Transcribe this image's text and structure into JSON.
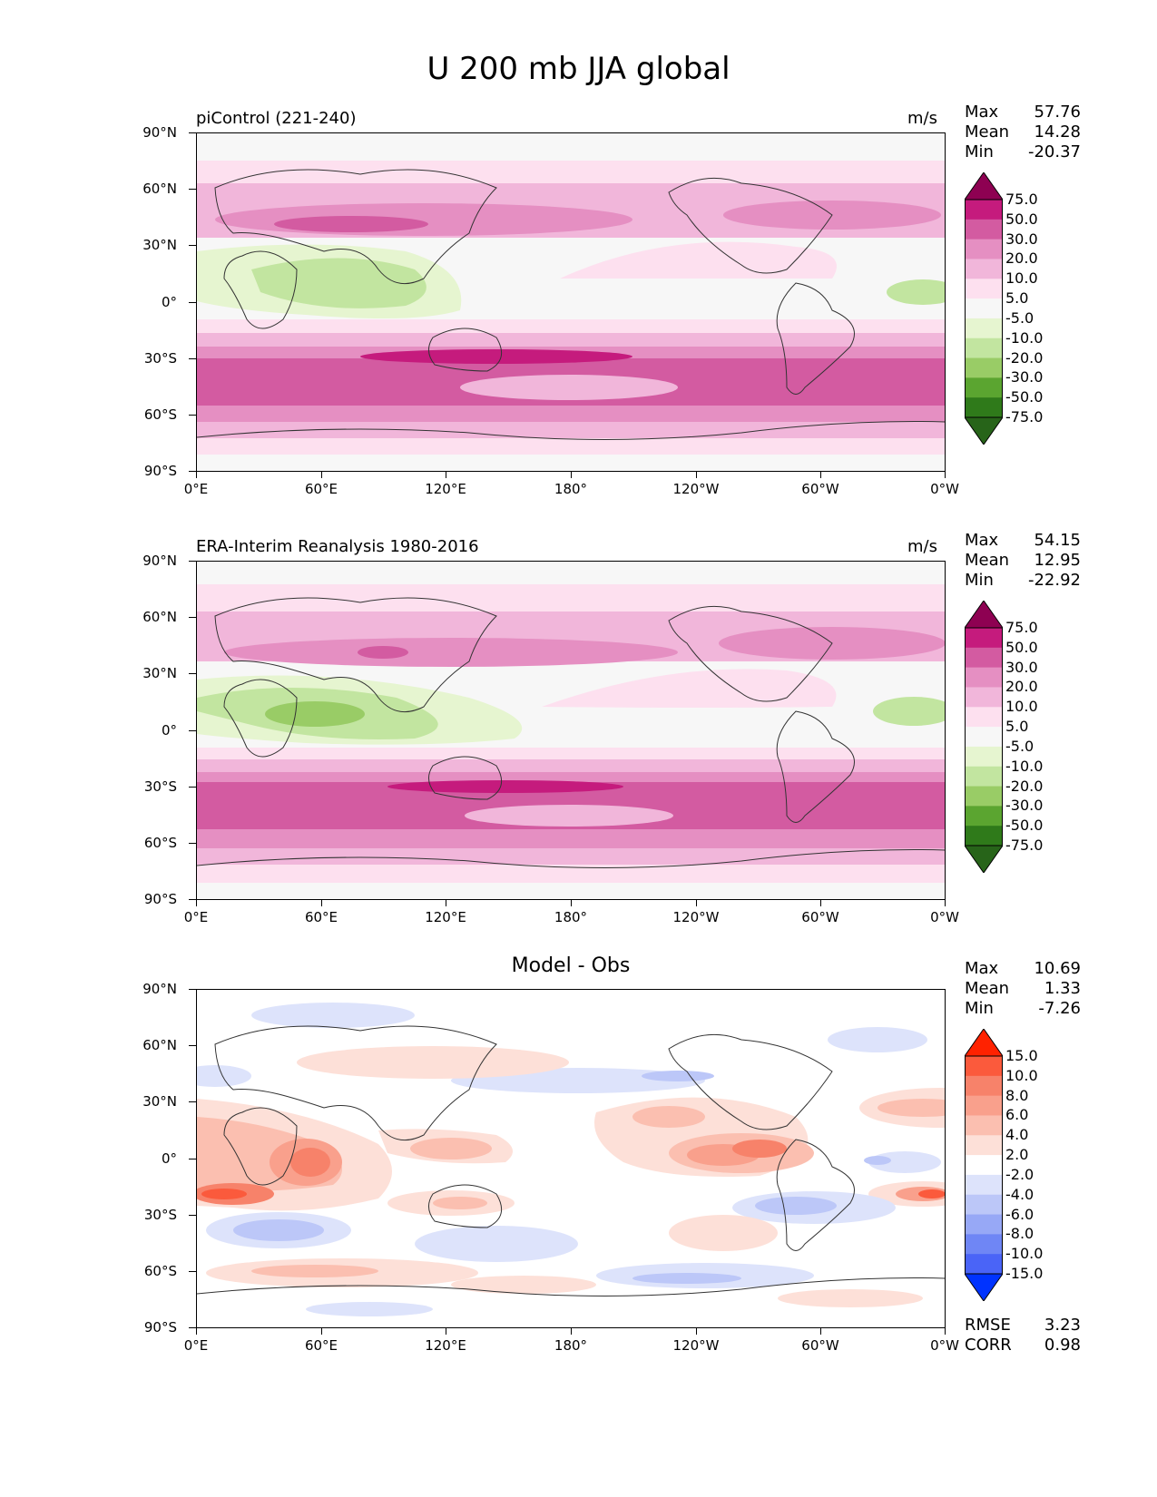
{
  "title": "U 200 mb JJA global",
  "x_ticks": [
    "0°E",
    "60°E",
    "120°E",
    "180°",
    "120°W",
    "60°W",
    "0°W"
  ],
  "y_ticks": [
    "90°N",
    "60°N",
    "30°N",
    "0°",
    "30°S",
    "60°S",
    "90°S"
  ],
  "panels": [
    {
      "title": "piControl (221-240)",
      "units": "m/s",
      "stats": {
        "max_label": "Max",
        "max": "57.76",
        "mean_label": "Mean",
        "mean": "14.28",
        "min_label": "Min",
        "min": "-20.37"
      },
      "colorbar": {
        "labels": [
          "75.0",
          "50.0",
          "30.0",
          "20.0",
          "10.0",
          "5.0",
          "-5.0",
          "-10.0",
          "-20.0",
          "-30.0",
          "-50.0",
          "-75.0"
        ],
        "colors": [
          "#8e0152",
          "#c51b7d",
          "#d35ba1",
          "#e58fc2",
          "#f1b6da",
          "#fde0ef",
          "#f7f7f7",
          "#e6f5d0",
          "#c2e5a0",
          "#99cc66",
          "#5ba530",
          "#2f7a1a",
          "#276419"
        ]
      }
    },
    {
      "title": "ERA-Interim Reanalysis 1980-2016",
      "units": "m/s",
      "stats": {
        "max_label": "Max",
        "max": "54.15",
        "mean_label": "Mean",
        "mean": "12.95",
        "min_label": "Min",
        "min": "-22.92"
      },
      "colorbar": {
        "labels": [
          "75.0",
          "50.0",
          "30.0",
          "20.0",
          "10.0",
          "5.0",
          "-5.0",
          "-10.0",
          "-20.0",
          "-30.0",
          "-50.0",
          "-75.0"
        ],
        "colors": [
          "#8e0152",
          "#c51b7d",
          "#d35ba1",
          "#e58fc2",
          "#f1b6da",
          "#fde0ef",
          "#f7f7f7",
          "#e6f5d0",
          "#c2e5a0",
          "#99cc66",
          "#5ba530",
          "#2f7a1a",
          "#276419"
        ]
      }
    },
    {
      "title": "Model - Obs",
      "units": "",
      "stats": {
        "max_label": "Max",
        "max": "10.69",
        "mean_label": "Mean",
        "mean": "1.33",
        "min_label": "Min",
        "min": "-7.26"
      },
      "colorbar": {
        "labels": [
          "15.0",
          "10.0",
          "8.0",
          "6.0",
          "4.0",
          "2.0",
          "-2.0",
          "-4.0",
          "-6.0",
          "-8.0",
          "-10.0",
          "-15.0"
        ],
        "colors": [
          "#ff2200",
          "#fb5a3c",
          "#f7826a",
          "#f9a08c",
          "#fbbfb0",
          "#fde0d8",
          "#ffffff",
          "#dde3fb",
          "#bcc7f8",
          "#97a8f6",
          "#6f86f5",
          "#4a64f7",
          "#0033ff"
        ]
      },
      "footer": {
        "rmse_label": "RMSE",
        "rmse": "3.23",
        "corr_label": "CORR",
        "corr": "0.98"
      }
    }
  ]
}
